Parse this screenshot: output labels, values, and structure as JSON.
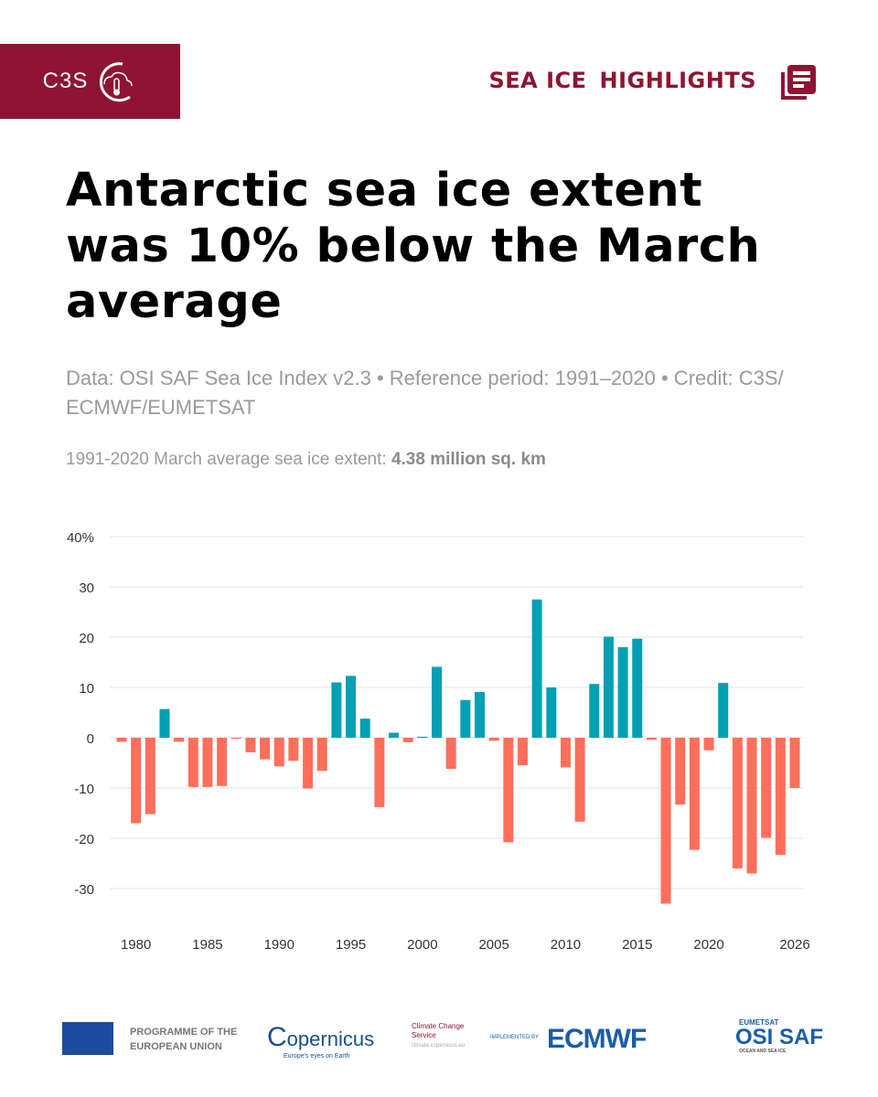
{
  "header": {
    "brand": "C3S",
    "section_1": "SEA ICE",
    "section_2": "HIGHLIGHTS"
  },
  "title": "Antarctic sea ice extent was 10% below the March average",
  "source": "Data: OSI SAF Sea Ice Index v2.3 • Reference period: 1991–2020 • Credit: C3S/ ECMWF/EUMETSAT",
  "average": {
    "label": "1991-2020 March average sea ice extent:",
    "value": "4.38 million sq. km"
  },
  "colors": {
    "brand": "#8f1432",
    "positive": "#00a0b5",
    "negative": "#ff6f5b"
  },
  "chart_data": {
    "type": "bar",
    "title": "",
    "xlabel": "",
    "ylabel": "",
    "ylim": [
      -35,
      40
    ],
    "yticks": [
      40,
      30,
      20,
      10,
      0,
      -10,
      -20,
      -30
    ],
    "ytick_labels": [
      "40%",
      "30",
      "20",
      "10",
      "0",
      "-10",
      "-20",
      "-30"
    ],
    "xtick_labels": [
      "1980",
      "1985",
      "1990",
      "1995",
      "2000",
      "2005",
      "2010",
      "2015",
      "2020",
      "2026"
    ],
    "grid": true,
    "x": [
      1979,
      1980,
      1981,
      1982,
      1983,
      1984,
      1985,
      1986,
      1987,
      1988,
      1989,
      1990,
      1991,
      1992,
      1993,
      1994,
      1995,
      1996,
      1997,
      1998,
      1999,
      2000,
      2001,
      2002,
      2003,
      2004,
      2005,
      2006,
      2007,
      2008,
      2009,
      2010,
      2011,
      2012,
      2013,
      2014,
      2015,
      2016,
      2017,
      2018,
      2019,
      2020,
      2021,
      2022,
      2023,
      2024,
      2025,
      2026
    ],
    "values": [
      -0.8,
      -17,
      -15.2,
      5.7,
      -0.8,
      -9.8,
      -9.8,
      -9.6,
      -0.2,
      -2.9,
      -4.3,
      -5.7,
      -4.6,
      -10.1,
      -6.6,
      11,
      12.3,
      3.8,
      -13.8,
      1,
      -0.9,
      0.2,
      14.1,
      -6.2,
      7.5,
      9.1,
      -0.6,
      -20.8,
      -5.5,
      27.5,
      10,
      -5.9,
      -16.7,
      10.7,
      20.1,
      18,
      19.7,
      -0.4,
      -33,
      -13.3,
      -22.3,
      -2.5,
      10.9,
      -26,
      -27,
      -19.9,
      -23.3,
      -10
    ]
  },
  "footer": {
    "eu": "PROGRAMME OF THE EUROPEAN UNION",
    "copernicus": "opernicus",
    "copernicus_tagline": "Europe's eyes on Earth",
    "ccs": "Climate Change Service",
    "ccs_url": "climate.copernicus.eu",
    "implemented_by": "IMPLEMENTED BY",
    "ecmwf": "ECMWF",
    "eumetsat": "EUMETSAT",
    "osisaf": "OSI SAF",
    "osisaf_tagline": "OCEAN AND SEA ICE"
  }
}
